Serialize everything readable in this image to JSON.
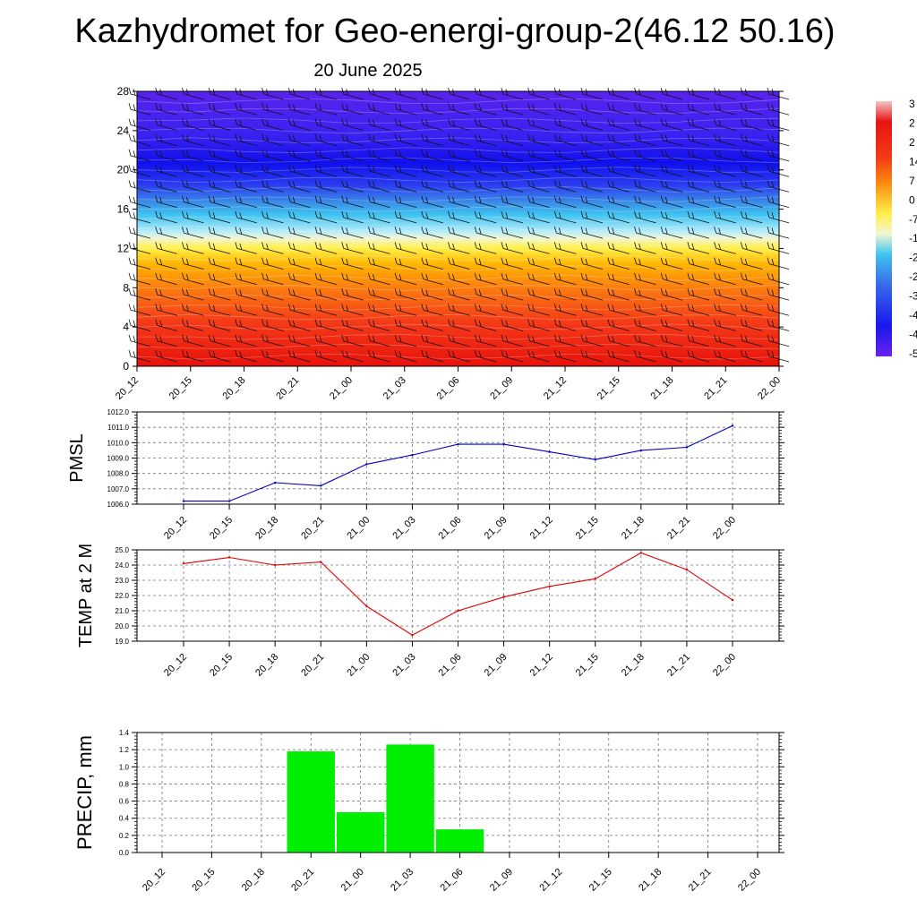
{
  "title": "Kazhydromet for Geo-energi-group-2(46.12 50.16)",
  "date": "20 June 2025",
  "chart_data": [
    {
      "type": "heatmap",
      "x_categories": [
        "20_12",
        "20_15",
        "20_18",
        "20_21",
        "21_00",
        "21_03",
        "21_06",
        "21_09",
        "21_12",
        "21_15",
        "21_18",
        "21_21",
        "22_00"
      ],
      "ylim": [
        0,
        28
      ],
      "yticks": [
        0,
        4,
        8,
        12,
        16,
        20,
        24,
        28
      ],
      "colorbar_labels": [
        "3",
        "2",
        "2",
        "14",
        "7",
        "0",
        "-7",
        "-1",
        "-2",
        "-2",
        "-3",
        "-4",
        "-4",
        "-5"
      ],
      "wind_barbs": true
    },
    {
      "type": "line",
      "ylabel": "PMSL",
      "categories": [
        "20_12",
        "20_15",
        "20_18",
        "20_21",
        "21_00",
        "21_03",
        "21_06",
        "21_09",
        "21_12",
        "21_15",
        "21_18",
        "21_21",
        "22_00"
      ],
      "values": [
        1006.2,
        1006.2,
        1007.4,
        1007.2,
        1008.6,
        1009.2,
        1009.9,
        1009.9,
        1009.4,
        1008.9,
        1009.5,
        1009.7,
        1011.1
      ],
      "ylim": [
        1006.0,
        1012.0
      ],
      "yticks": [
        "1006.0",
        "1007.0",
        "1008.0",
        "1009.0",
        "1010.0",
        "1011.0",
        "1012.0"
      ],
      "color": "#0000c8"
    },
    {
      "type": "line",
      "ylabel": "TEMP at 2 M",
      "categories": [
        "20_12",
        "20_15",
        "20_18",
        "20_21",
        "21_00",
        "21_03",
        "21_06",
        "21_09",
        "21_12",
        "21_15",
        "21_18",
        "21_21",
        "22_00"
      ],
      "values": [
        24.1,
        24.5,
        24.0,
        24.2,
        21.3,
        19.4,
        21.0,
        21.9,
        22.6,
        23.1,
        24.8,
        23.7,
        21.7
      ],
      "ylim": [
        19.0,
        25.0
      ],
      "yticks": [
        "19.0",
        "20.0",
        "21.0",
        "22.0",
        "23.0",
        "24.0",
        "25.0"
      ],
      "color": "#e00000"
    },
    {
      "type": "bar",
      "ylabel": "PRECIP, mm",
      "categories": [
        "20_12",
        "20_15",
        "20_18",
        "20_21",
        "21_00",
        "21_03",
        "21_06",
        "21_09",
        "21_12",
        "21_15",
        "21_18",
        "21_21",
        "22_00"
      ],
      "values": [
        0,
        0,
        0,
        1.18,
        0.47,
        1.26,
        0.27,
        0,
        0,
        0,
        0,
        0,
        0
      ],
      "ylim": [
        0.0,
        1.4
      ],
      "yticks": [
        "0.0",
        "0.2",
        "0.4",
        "0.6",
        "0.8",
        "1.0",
        "1.2",
        "1.4"
      ],
      "color": "#00ee00"
    }
  ]
}
